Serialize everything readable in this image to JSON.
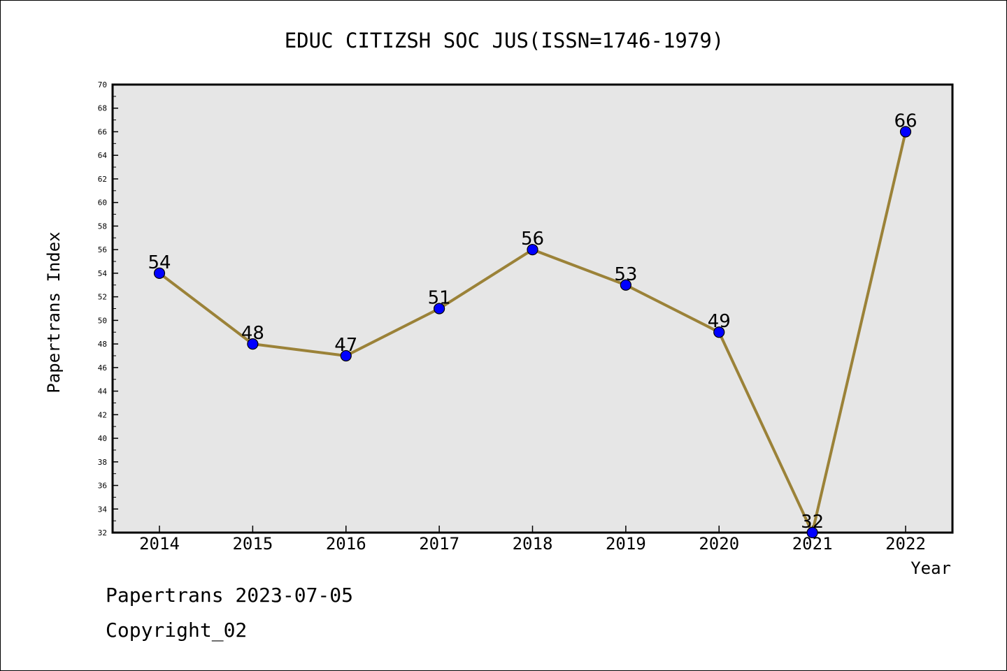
{
  "chart_data": {
    "type": "line",
    "title": "EDUC CITIZSH SOC JUS(ISSN=1746-1979)",
    "xlabel": "Year",
    "ylabel": "Papertrans Index",
    "categories": [
      "2014",
      "2015",
      "2016",
      "2017",
      "2018",
      "2019",
      "2020",
      "2021",
      "2022"
    ],
    "series": [
      {
        "values": [
          54,
          48,
          47,
          51,
          56,
          53,
          49,
          32,
          66
        ]
      }
    ],
    "data_labels": [
      "54",
      "48",
      "47",
      "51",
      "56",
      "53",
      "49",
      "32",
      "66"
    ],
    "ylim": [
      32,
      70
    ],
    "yticks": [
      "32",
      "34",
      "36",
      "38",
      "40",
      "42",
      "44",
      "46",
      "48",
      "50",
      "52",
      "54",
      "56",
      "58",
      "60",
      "62",
      "64",
      "66",
      "68",
      "70"
    ],
    "grid": false,
    "colors": {
      "plot_background": "#e6e6e6",
      "line": "#9b8238",
      "marker": "#0000ff",
      "marker_edge": "#000000",
      "frame": "#000000"
    }
  },
  "footer": {
    "line1": "Papertrans 2023-07-05",
    "line2": "Copyright_02"
  }
}
